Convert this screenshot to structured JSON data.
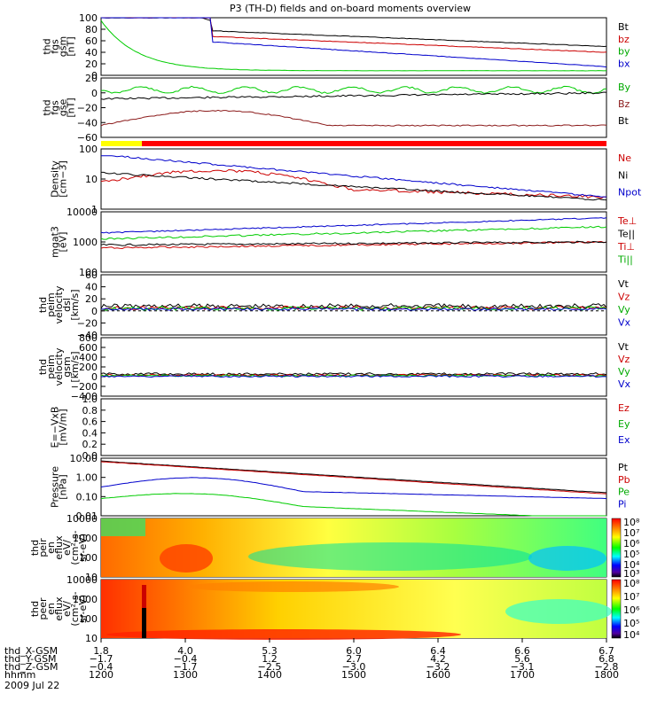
{
  "chart_data": {
    "type": "line",
    "title": "P3 (TH-D) fields and on-board moments overview",
    "panels": [
      {
        "id": "fgs_gsm",
        "ylabel": [
          "thd",
          "fgs",
          "gsm",
          "[nT]"
        ],
        "ylim": [
          -10,
          100
        ],
        "yticks": [
          "100",
          "80",
          "60",
          "40",
          "20",
          "0"
        ],
        "legend": [
          {
            "name": "Bt",
            "color": "#000000"
          },
          {
            "name": "bz",
            "color": "#cc0000"
          },
          {
            "name": "by",
            "color": "#00aa00"
          },
          {
            "name": "bx",
            "color": "#0000cc"
          }
        ]
      },
      {
        "id": "fgs_gse",
        "ylabel": [
          "thd",
          "fgs",
          "gse",
          "[nT]"
        ],
        "ylim": [
          -70,
          25
        ],
        "yticks": [
          "20",
          "0",
          "−20",
          "−40",
          "−60"
        ],
        "legend": [
          {
            "name": "By",
            "color": "#00aa00"
          },
          {
            "name": "Bz",
            "color": "#8b1a1a"
          },
          {
            "name": "Bt",
            "color": "#000000"
          }
        ]
      },
      {
        "id": "density",
        "ylabel": [
          "Density",
          "[cm−3]"
        ],
        "yticks": [
          "100",
          "10",
          "1"
        ],
        "legend": [
          {
            "name": "Ne",
            "color": "#cc0000"
          },
          {
            "name": "Ni",
            "color": "#000000"
          },
          {
            "name": "Npot",
            "color": "#0000cc"
          }
        ]
      },
      {
        "id": "temp",
        "ylabel": [
          "mgat3",
          "[eV]"
        ],
        "yticks": [
          "10000",
          "1000",
          "100"
        ],
        "legend": [
          {
            "name": "Te⊥",
            "color": "#cc0000"
          },
          {
            "name": "Te||",
            "color": "#000000"
          },
          {
            "name": "Ti⊥",
            "color": "#cc0000"
          },
          {
            "name": "Ti||",
            "color": "#00aa00"
          }
        ]
      },
      {
        "id": "vel_dsl",
        "ylabel": [
          "thd",
          "peim",
          "velocity",
          "dsl",
          "[km/s]"
        ],
        "yticks": [
          "60",
          "40",
          "20",
          "0",
          "−20",
          "−40"
        ],
        "legend": [
          {
            "name": "Vt",
            "color": "#000000"
          },
          {
            "name": "Vz",
            "color": "#cc0000"
          },
          {
            "name": "Vy",
            "color": "#00aa00"
          },
          {
            "name": "Vx",
            "color": "#0000cc"
          }
        ]
      },
      {
        "id": "vel_gsm",
        "ylabel": [
          "thd",
          "peim",
          "velocity",
          "gsm",
          "[km/s]"
        ],
        "yticks": [
          "800",
          "600",
          "400",
          "200",
          "0",
          "−200",
          "−400"
        ],
        "legend": [
          {
            "name": "Vt",
            "color": "#000000"
          },
          {
            "name": "Vz",
            "color": "#cc0000"
          },
          {
            "name": "Vy",
            "color": "#00aa00"
          },
          {
            "name": "Vx",
            "color": "#0000cc"
          }
        ]
      },
      {
        "id": "efield",
        "ylabel": [
          "E=−VxB",
          "[mV/m]"
        ],
        "yticks": [
          "1.0",
          "0.8",
          "0.6",
          "0.4",
          "0.2",
          "0.0"
        ],
        "legend": [
          {
            "name": "Ez",
            "color": "#cc0000"
          },
          {
            "name": "Ey",
            "color": "#00aa00"
          },
          {
            "name": "Ex",
            "color": "#0000cc"
          }
        ]
      },
      {
        "id": "pressure",
        "ylabel": [
          "Pressure",
          "[nPa]"
        ],
        "yticks": [
          "10.00",
          "1.00",
          "0.10",
          "0.01"
        ],
        "legend": [
          {
            "name": "Pt",
            "color": "#000000"
          },
          {
            "name": "Pb",
            "color": "#cc0000"
          },
          {
            "name": "Pe",
            "color": "#00aa00"
          },
          {
            "name": "Pi",
            "color": "#0000cc"
          }
        ]
      },
      {
        "id": "peir_spec",
        "ylabel": [
          "thd",
          "peir",
          "en",
          "eflux",
          "eV/",
          "(cm²-s-",
          "sr-eV)"
        ],
        "yticks": [
          "10000",
          "1000",
          "100",
          "10"
        ],
        "colorbar": [
          "10⁸",
          "10⁷",
          "10⁶",
          "10⁵",
          "10⁴",
          "10³"
        ]
      },
      {
        "id": "peer_spec",
        "ylabel": [
          "thd",
          "peer",
          "en",
          "eflux",
          "eV/",
          "(cm²-s-",
          "sr-eV)"
        ],
        "yticks": [
          "10000",
          "1000",
          "100",
          "10"
        ],
        "colorbar": [
          "10⁸",
          "10⁷",
          "10⁶",
          "10⁵",
          "10⁴"
        ]
      }
    ],
    "x_axis": {
      "row_labels": [
        "thd_X-GSM",
        "thd_Y-GSM",
        "thd_Z-GSM",
        "hhmm"
      ],
      "date": "2009 Jul 22",
      "ticks": [
        {
          "x": "1.8",
          "y": "−1.7",
          "z": "−0.4",
          "t": "1200"
        },
        {
          "x": "4.0",
          "y": "−0.4",
          "z": "−1.7",
          "t": "1300"
        },
        {
          "x": "5.3",
          "y": "1.2",
          "z": "−2.5",
          "t": "1400"
        },
        {
          "x": "6.0",
          "y": "2.7",
          "z": "−3.0",
          "t": "1500"
        },
        {
          "x": "6.4",
          "y": "4.2",
          "z": "−3.2",
          "t": "1600"
        },
        {
          "x": "6.6",
          "y": "5.6",
          "z": "−3.1",
          "t": "1700"
        },
        {
          "x": "6.7",
          "y": "6.8",
          "z": "−2.8",
          "t": "1800"
        }
      ]
    }
  }
}
